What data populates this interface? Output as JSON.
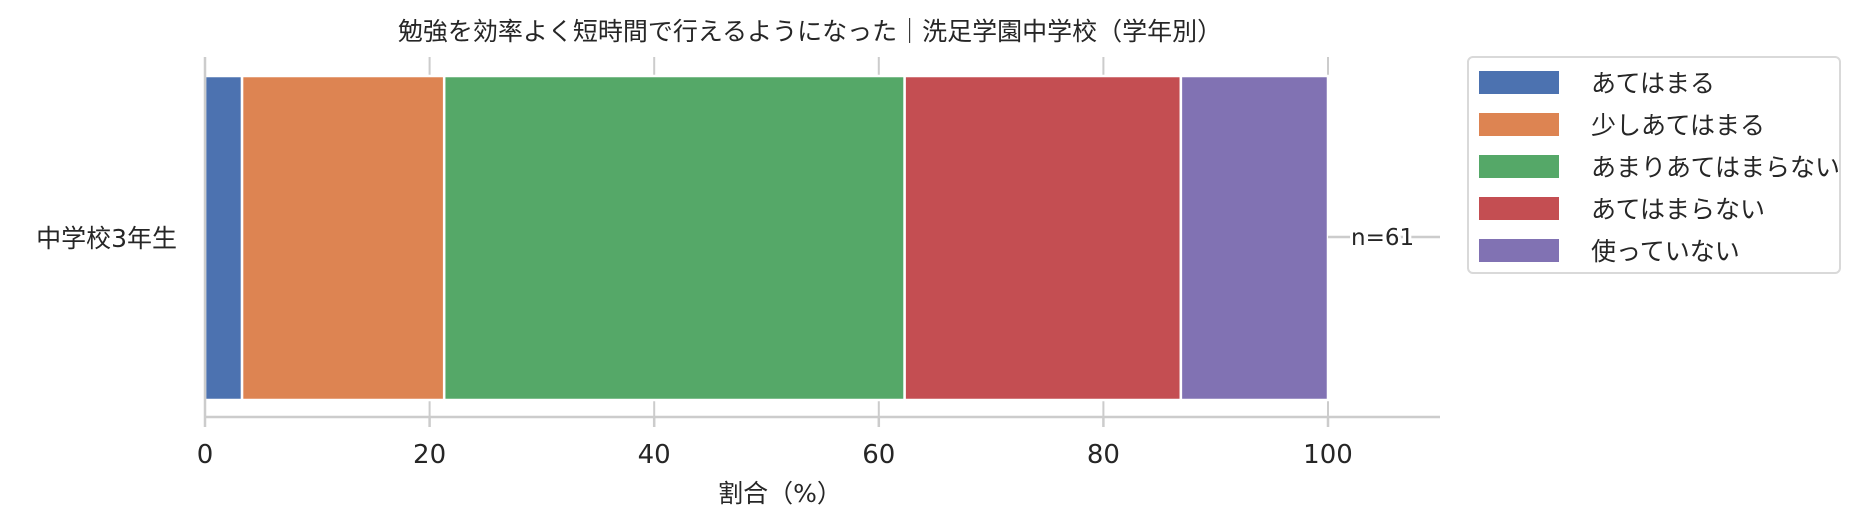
{
  "chart_data": {
    "type": "bar",
    "orientation": "horizontal",
    "stacked": true,
    "title": "勉強を効率よく短時間で行えるようになった｜洗足学園中学校（学年別）",
    "xlabel": "割合（%）",
    "ylabel": "",
    "xlim": [
      0,
      110
    ],
    "xticks": [
      "0",
      "20",
      "40",
      "60",
      "80",
      "100"
    ],
    "categories": [
      "中学校3年生"
    ],
    "series": [
      {
        "name": "あてはまる",
        "values": [
          3.3
        ],
        "color": "#4c72b0"
      },
      {
        "name": "少しあてはまる",
        "values": [
          18.0
        ],
        "color": "#dd8452"
      },
      {
        "name": "あまりあてはまらない",
        "values": [
          41.0
        ],
        "color": "#55a868"
      },
      {
        "name": "あてはまらない",
        "values": [
          24.6
        ],
        "color": "#c44e52"
      },
      {
        "name": "使っていない",
        "values": [
          13.1
        ],
        "color": "#8172b3"
      }
    ],
    "annotations": [
      "n=61"
    ],
    "legend_position": "outside-top-right",
    "grid": "vertical"
  }
}
